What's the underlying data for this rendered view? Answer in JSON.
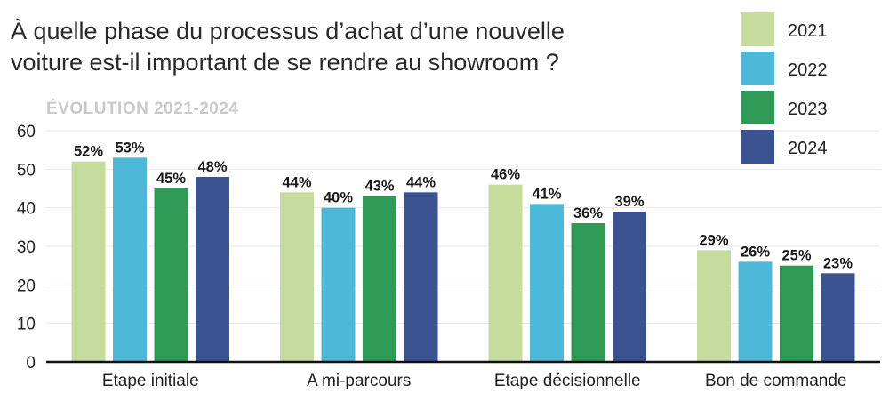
{
  "chart_data": {
    "type": "bar",
    "title_lines": [
      "À quelle phase du processus d’achat d’une nouvelle",
      "voiture est-il important de se rendre au showroom ?"
    ],
    "subtitle": "ÉVOLUTION 2021-2024",
    "categories": [
      "Etape initiale",
      "A mi-parcours",
      "Etape décisionnelle",
      "Bon de commande"
    ],
    "series": [
      {
        "name": "2021",
        "color": "#c5dc9c",
        "values": [
          52,
          44,
          46,
          29
        ],
        "labels": [
          "52%",
          "44%",
          "46%",
          "29%"
        ]
      },
      {
        "name": "2022",
        "color": "#4db8d8",
        "values": [
          53,
          40,
          41,
          26
        ],
        "labels": [
          "53%",
          "40%",
          "41%",
          "26%"
        ]
      },
      {
        "name": "2023",
        "color": "#2e9a55",
        "values": [
          45,
          43,
          36,
          25
        ],
        "labels": [
          "45%",
          "43%",
          "36%",
          "25%"
        ]
      },
      {
        "name": "2024",
        "color": "#3c5391",
        "values": [
          48,
          44,
          39,
          23
        ],
        "labels": [
          "48%",
          "44%",
          "39%",
          "23%"
        ]
      }
    ],
    "ylim": [
      0,
      60
    ],
    "yticks": [
      "0",
      "10",
      "20",
      "30",
      "40",
      "50",
      "60"
    ],
    "xlabel": "",
    "ylabel": "",
    "grid": true,
    "legend_position": "top-right"
  }
}
